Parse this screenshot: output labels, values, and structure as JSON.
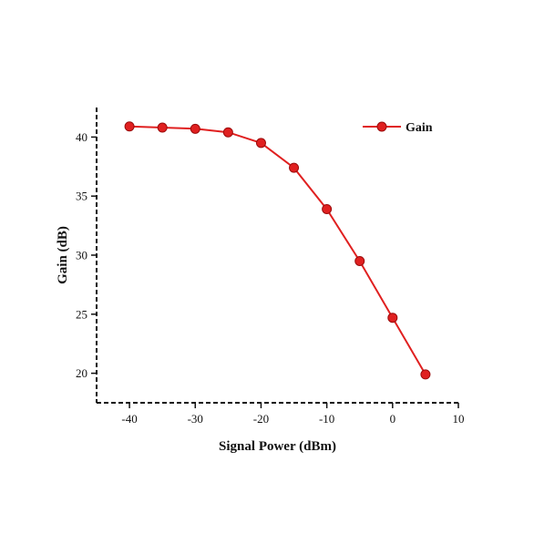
{
  "chart_data": {
    "type": "line",
    "xlabel": "Signal Power (dBm)",
    "ylabel": "Gain (dB)",
    "xlim": [
      -45,
      10
    ],
    "ylim": [
      17.5,
      42.5
    ],
    "xticks": [
      -40,
      -30,
      -20,
      -10,
      0,
      10
    ],
    "yticks": [
      20,
      25,
      30,
      35,
      40
    ],
    "xtick_labels": [
      "-40",
      "-30",
      "-20",
      "-10",
      "0",
      "10"
    ],
    "ytick_labels": [
      "20",
      "25",
      "30",
      "35",
      "40"
    ],
    "grid": false,
    "legend_position": "top-right",
    "series": [
      {
        "name": "Gain",
        "color": "#e02020",
        "marker": "circle",
        "x": [
          -40,
          -35,
          -30,
          -25,
          -20,
          -15,
          -10,
          -5,
          0,
          5
        ],
        "y": [
          40.9,
          40.8,
          40.7,
          40.4,
          39.5,
          37.4,
          33.9,
          29.5,
          24.7,
          19.9
        ]
      }
    ]
  }
}
